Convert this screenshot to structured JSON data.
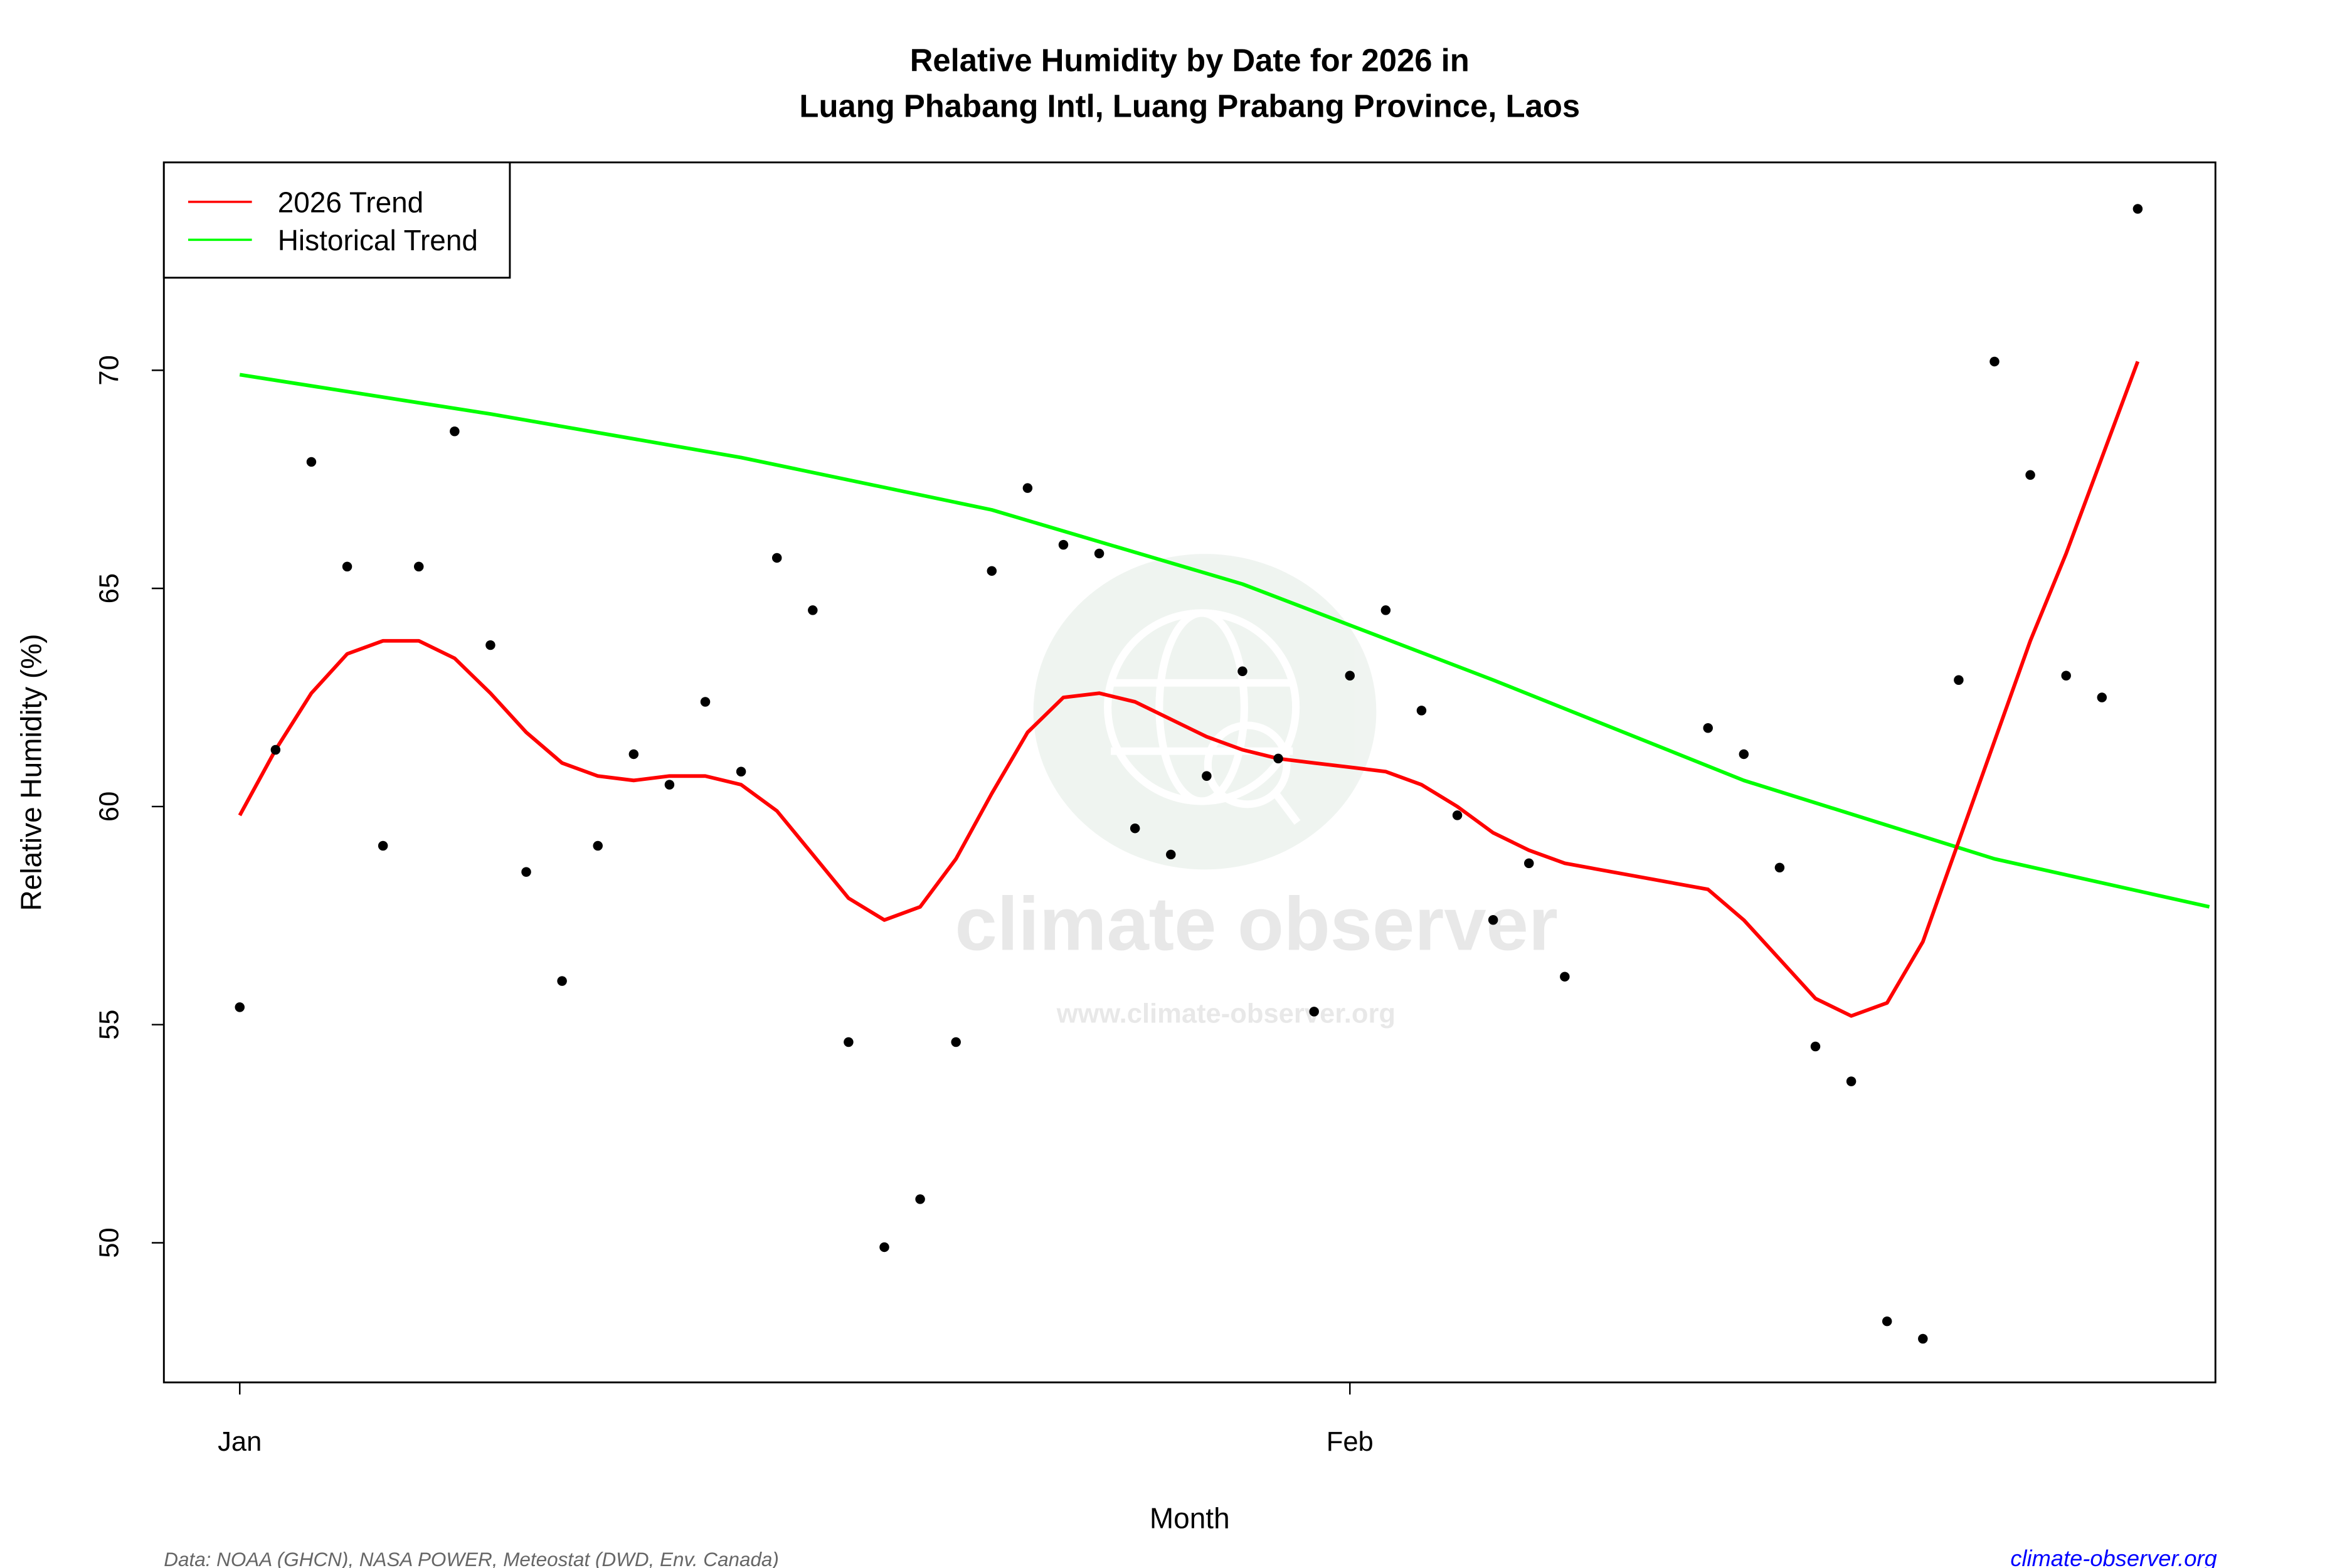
{
  "chart_data": {
    "type": "scatter",
    "title_line1": "Relative Humidity by Date for 2026 in",
    "title_line2": "Luang Phabang Intl, Luang Prabang Province, Laos",
    "xlabel": "Month",
    "ylabel": "Relative Humidity (%)",
    "x_ticks": [
      {
        "date": "2026-01-01",
        "label": "Jan"
      },
      {
        "date": "2026-02-01",
        "label": "Feb"
      }
    ],
    "y_ticks": [
      50,
      55,
      60,
      65,
      70
    ],
    "xlim": [
      "2025-12-29",
      "2026-02-25"
    ],
    "ylim": [
      46.8,
      74.8
    ],
    "grid": false,
    "legend_position": "top-left",
    "legend": [
      {
        "label": "2026 Trend",
        "color": "#ff0000"
      },
      {
        "label": "Historical Trend",
        "color": "#00ff00"
      }
    ],
    "points": [
      [
        "2026-01-01",
        55.4
      ],
      [
        "2026-01-02",
        61.3
      ],
      [
        "2026-01-03",
        67.9
      ],
      [
        "2026-01-04",
        65.5
      ],
      [
        "2026-01-05",
        59.1
      ],
      [
        "2026-01-06",
        65.5
      ],
      [
        "2026-01-07",
        68.6
      ],
      [
        "2026-01-08",
        63.7
      ],
      [
        "2026-01-09",
        58.5
      ],
      [
        "2026-01-10",
        56.0
      ],
      [
        "2026-01-11",
        59.1
      ],
      [
        "2026-01-12",
        61.2
      ],
      [
        "2026-01-13",
        60.5
      ],
      [
        "2026-01-14",
        62.4
      ],
      [
        "2026-01-15",
        60.8
      ],
      [
        "2026-01-16",
        65.7
      ],
      [
        "2026-01-17",
        64.5
      ],
      [
        "2026-01-18",
        54.6
      ],
      [
        "2026-01-19",
        49.9
      ],
      [
        "2026-01-20",
        51.0
      ],
      [
        "2026-01-21",
        54.6
      ],
      [
        "2026-01-22",
        65.4
      ],
      [
        "2026-01-23",
        67.3
      ],
      [
        "2026-01-24",
        66.0
      ],
      [
        "2026-01-25",
        65.8
      ],
      [
        "2026-01-26",
        59.5
      ],
      [
        "2026-01-27",
        58.9
      ],
      [
        "2026-01-28",
        60.7
      ],
      [
        "2026-01-29",
        63.1
      ],
      [
        "2026-01-30",
        61.1
      ],
      [
        "2026-01-31",
        55.3
      ],
      [
        "2026-02-01",
        63.0
      ],
      [
        "2026-02-02",
        64.5
      ],
      [
        "2026-02-03",
        62.2
      ],
      [
        "2026-02-04",
        59.8
      ],
      [
        "2026-02-05",
        57.4
      ],
      [
        "2026-02-06",
        58.7
      ],
      [
        "2026-02-07",
        56.1
      ],
      [
        "2026-02-11",
        61.8
      ],
      [
        "2026-02-12",
        61.2
      ],
      [
        "2026-02-13",
        58.6
      ],
      [
        "2026-02-14",
        54.5
      ],
      [
        "2026-02-15",
        53.7
      ],
      [
        "2026-02-16",
        48.2
      ],
      [
        "2026-02-17",
        47.8
      ],
      [
        "2026-02-18",
        62.9
      ],
      [
        "2026-02-19",
        70.2
      ],
      [
        "2026-02-20",
        67.6
      ],
      [
        "2026-02-21",
        63.0
      ],
      [
        "2026-02-22",
        62.5
      ],
      [
        "2026-02-23",
        73.7
      ]
    ],
    "series": [
      {
        "name": "2026 Trend",
        "color": "#ff0000",
        "points": [
          [
            "2026-01-01",
            59.8
          ],
          [
            "2026-01-02",
            61.3
          ],
          [
            "2026-01-03",
            62.6
          ],
          [
            "2026-01-04",
            63.5
          ],
          [
            "2026-01-05",
            63.8
          ],
          [
            "2026-01-06",
            63.8
          ],
          [
            "2026-01-07",
            63.4
          ],
          [
            "2026-01-08",
            62.6
          ],
          [
            "2026-01-09",
            61.7
          ],
          [
            "2026-01-10",
            61.0
          ],
          [
            "2026-01-11",
            60.7
          ],
          [
            "2026-01-12",
            60.6
          ],
          [
            "2026-01-13",
            60.7
          ],
          [
            "2026-01-14",
            60.7
          ],
          [
            "2026-01-15",
            60.5
          ],
          [
            "2026-01-16",
            59.9
          ],
          [
            "2026-01-17",
            58.9
          ],
          [
            "2026-01-18",
            57.9
          ],
          [
            "2026-01-19",
            57.4
          ],
          [
            "2026-01-20",
            57.7
          ],
          [
            "2026-01-21",
            58.8
          ],
          [
            "2026-01-22",
            60.3
          ],
          [
            "2026-01-23",
            61.7
          ],
          [
            "2026-01-24",
            62.5
          ],
          [
            "2026-01-25",
            62.6
          ],
          [
            "2026-01-26",
            62.4
          ],
          [
            "2026-01-27",
            62.0
          ],
          [
            "2026-01-28",
            61.6
          ],
          [
            "2026-01-29",
            61.3
          ],
          [
            "2026-01-30",
            61.1
          ],
          [
            "2026-01-31",
            61.0
          ],
          [
            "2026-02-01",
            60.9
          ],
          [
            "2026-02-02",
            60.8
          ],
          [
            "2026-02-03",
            60.5
          ],
          [
            "2026-02-04",
            60.0
          ],
          [
            "2026-02-05",
            59.4
          ],
          [
            "2026-02-06",
            59.0
          ],
          [
            "2026-02-07",
            58.7
          ],
          [
            "2026-02-11",
            58.1
          ],
          [
            "2026-02-12",
            57.4
          ],
          [
            "2026-02-13",
            56.5
          ],
          [
            "2026-02-14",
            55.6
          ],
          [
            "2026-02-15",
            55.2
          ],
          [
            "2026-02-16",
            55.5
          ],
          [
            "2026-02-17",
            56.9
          ],
          [
            "2026-02-18",
            59.2
          ],
          [
            "2026-02-19",
            61.5
          ],
          [
            "2026-02-20",
            63.8
          ],
          [
            "2026-02-21",
            65.8
          ],
          [
            "2026-02-22",
            68.0
          ],
          [
            "2026-02-23",
            70.2
          ]
        ]
      },
      {
        "name": "Historical Trend",
        "color": "#00ff00",
        "points": [
          [
            "2026-01-01",
            69.9
          ],
          [
            "2026-01-08",
            69.0
          ],
          [
            "2026-01-15",
            68.0
          ],
          [
            "2026-01-22",
            66.8
          ],
          [
            "2026-01-29",
            65.1
          ],
          [
            "2026-02-05",
            62.9
          ],
          [
            "2026-02-12",
            60.6
          ],
          [
            "2026-02-19",
            58.8
          ],
          [
            "2026-02-25",
            57.7
          ]
        ]
      }
    ]
  },
  "watermark": {
    "name": "climate observer",
    "url": "www.climate-observer.org"
  },
  "footer": {
    "source": "Data: NOAA (GHCN), NASA POWER, Meteostat (DWD, Env. Canada)",
    "site": "climate-observer.org",
    "site_color": "#0000ff"
  }
}
